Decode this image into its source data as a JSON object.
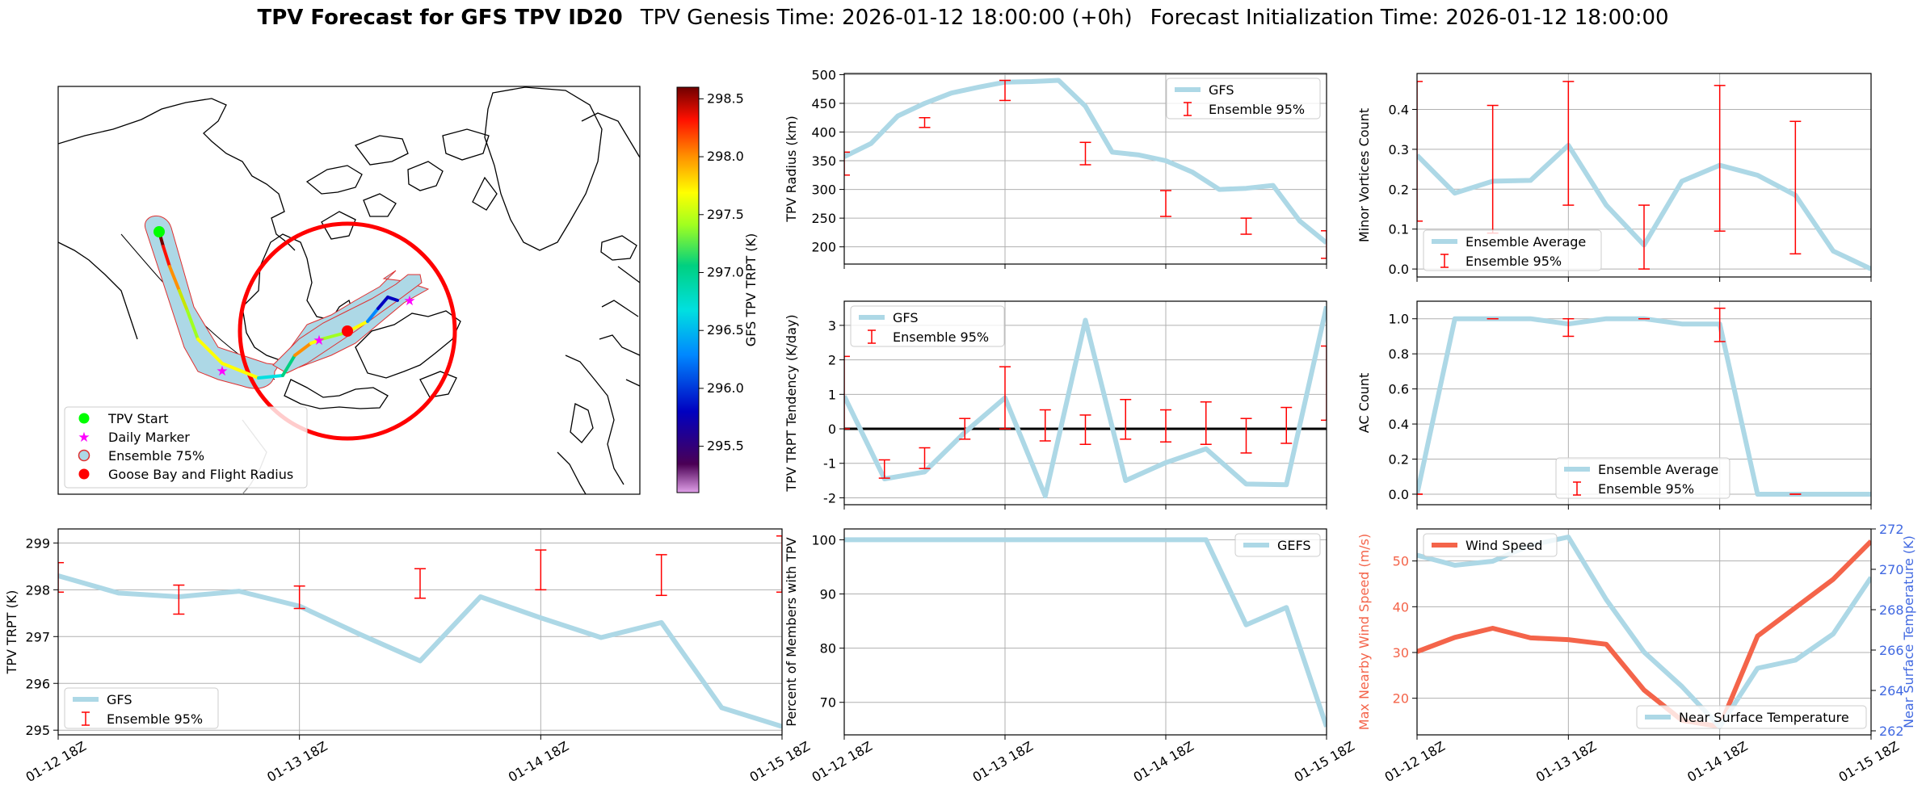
{
  "title": {
    "bold": "TPV Forecast for GFS TPV ID20",
    "genesis": "TPV Genesis Time: 2026-01-12 18:00:00 (+0h)",
    "init": "Forecast Initialization Time: 2026-01-12 18:00:00"
  },
  "colors": {
    "gfs_line": "#add8e6",
    "ensemble_err": "#ff0000",
    "wind_line": "#f4644a",
    "temp_axis": "#4169e1",
    "wind_axis": "#f4644a"
  },
  "map": {
    "colorbar_label": "GFS TPV TRPT (K)",
    "colorbar_ticks": [
      "298.5",
      "298.0",
      "297.5",
      "297.0",
      "296.5",
      "296.0",
      "295.5"
    ],
    "colorbar_range": [
      295.1,
      298.6
    ],
    "legend": [
      "TPV Start",
      "Daily Marker",
      "Ensemble 75%",
      "Goose Bay and Flight Radius"
    ],
    "legend_icons": [
      "green-circle-icon",
      "magenta-star-icon",
      "hollow-red-circle-icon",
      "red-circle-icon"
    ]
  },
  "chart_data": [
    {
      "id": "trpt",
      "type": "line",
      "title": "",
      "xlabel": "",
      "ylabel": "TPV TRPT (K)",
      "xticks": [
        "01-12 18Z",
        "01-13 18Z",
        "01-14 18Z",
        "01-15 18Z"
      ],
      "xlim": [
        0,
        72
      ],
      "ylim": [
        294.9,
        299.3
      ],
      "yticks": [
        295,
        296,
        297,
        298,
        299
      ],
      "legend": "bottom-left",
      "series": [
        {
          "name": "GFS",
          "x": [
            0,
            6,
            12,
            18,
            24,
            30,
            36,
            42,
            48,
            54,
            60,
            66,
            72
          ],
          "y": [
            298.3,
            297.93,
            297.85,
            297.97,
            297.65,
            297.05,
            296.48,
            297.85,
            297.4,
            296.98,
            297.3,
            295.48,
            295.08
          ]
        }
      ],
      "errorbars": {
        "name": "Ensemble 95%",
        "x": [
          0,
          12,
          24,
          36,
          48,
          60,
          72
        ],
        "low": [
          297.95,
          297.48,
          297.6,
          297.82,
          298.0,
          297.88,
          297.95
        ],
        "high": [
          298.58,
          298.1,
          298.08,
          298.45,
          298.85,
          298.75,
          299.15
        ]
      }
    },
    {
      "id": "radius",
      "type": "line",
      "title": "",
      "xlabel": "",
      "ylabel": "TPV Radius (km)",
      "xlim": [
        0,
        72
      ],
      "ylim": [
        170,
        502
      ],
      "yticks": [
        200,
        250,
        300,
        350,
        400,
        450,
        500
      ],
      "legend": "top-right",
      "series": [
        {
          "name": "GFS",
          "x": [
            0,
            4,
            8,
            12,
            16,
            20,
            24,
            28,
            32,
            36,
            40,
            44,
            48,
            52,
            56,
            60,
            64,
            68,
            72
          ],
          "y": [
            357,
            380,
            428,
            450,
            468,
            478,
            487,
            488,
            490,
            445,
            365,
            360,
            350,
            330,
            300,
            302,
            307,
            245,
            207
          ]
        }
      ],
      "errorbars": {
        "name": "Ensemble 95%",
        "x": [
          0,
          12,
          24,
          36,
          48,
          60,
          72
        ],
        "low": [
          325,
          408,
          455,
          343,
          253,
          222,
          180
        ],
        "high": [
          365,
          425,
          490,
          382,
          298,
          250,
          228
        ]
      }
    },
    {
      "id": "minor",
      "type": "line",
      "title": "",
      "xlabel": "",
      "ylabel": "Minor Vortices Count",
      "xlim": [
        0,
        72
      ],
      "ylim": [
        -0.02,
        0.49
      ],
      "yticks": [
        0.0,
        0.1,
        0.2,
        0.3,
        0.4
      ],
      "legend": "bottom-left",
      "series": [
        {
          "name": "Ensemble Average",
          "x": [
            0,
            6,
            12,
            18,
            24,
            30,
            36,
            42,
            48,
            54,
            60,
            66,
            72
          ],
          "y": [
            0.285,
            0.19,
            0.22,
            0.222,
            0.31,
            0.16,
            0.06,
            0.22,
            0.26,
            0.235,
            0.185,
            0.045,
            0.0
          ]
        }
      ],
      "errorbars": {
        "name": "Ensemble 95%",
        "x": [
          0,
          12,
          24,
          36,
          48,
          60
        ],
        "low": [
          0.12,
          0.09,
          0.16,
          0.0,
          0.095,
          0.038
        ],
        "high": [
          0.47,
          0.41,
          0.47,
          0.16,
          0.46,
          0.37
        ]
      }
    },
    {
      "id": "tendency",
      "type": "line",
      "title": "",
      "xlabel": "",
      "ylabel": "TPV TRPT Tendency (K/day)",
      "xlim": [
        0,
        72
      ],
      "ylim": [
        -2.2,
        3.7
      ],
      "yticks": [
        -2,
        -1,
        0,
        1,
        2,
        3
      ],
      "zero_line": true,
      "legend": "top-left",
      "series": [
        {
          "name": "GFS",
          "x": [
            0,
            6,
            12,
            18,
            24,
            30,
            36,
            42,
            48,
            54,
            60,
            66,
            72
          ],
          "y": [
            0.95,
            -1.45,
            -1.25,
            -0.1,
            0.9,
            -1.95,
            3.15,
            -1.5,
            -0.98,
            -0.58,
            -1.6,
            -1.62,
            3.55
          ]
        }
      ],
      "errorbars": {
        "name": "Ensemble 95%",
        "x": [
          0,
          6,
          12,
          18,
          24,
          30,
          36,
          42,
          48,
          54,
          60,
          66,
          72
        ],
        "low": [
          0.0,
          -1.43,
          -1.15,
          -0.3,
          0.0,
          -0.35,
          -0.45,
          -0.3,
          -0.38,
          -0.45,
          -0.7,
          -0.42,
          0.25
        ],
        "high": [
          2.1,
          -0.9,
          -0.55,
          0.3,
          1.8,
          0.55,
          0.4,
          0.85,
          0.55,
          0.78,
          0.3,
          0.62,
          2.4
        ]
      }
    },
    {
      "id": "ac",
      "type": "line",
      "title": "",
      "xlabel": "",
      "ylabel": "AC Count",
      "xlim": [
        0,
        72
      ],
      "ylim": [
        -0.06,
        1.1
      ],
      "yticks": [
        0.0,
        0.2,
        0.4,
        0.6,
        0.8,
        1.0
      ],
      "legend": "bottom-right",
      "series": [
        {
          "name": "Ensemble Average",
          "x": [
            0,
            6,
            12,
            18,
            24,
            30,
            36,
            42,
            48,
            54,
            60,
            66,
            72
          ],
          "y": [
            0.0,
            1.0,
            1.0,
            1.0,
            0.97,
            1.0,
            1.0,
            0.97,
            0.97,
            0.0,
            0.0,
            0.0,
            0.0
          ]
        }
      ],
      "errorbars": {
        "name": "Ensemble 95%",
        "x": [
          0,
          12,
          24,
          36,
          48,
          60
        ],
        "low": [
          0.0,
          1.0,
          0.9,
          1.0,
          0.87,
          0.0
        ],
        "high": [
          0.0,
          1.0,
          1.0,
          1.0,
          1.06,
          0.0
        ]
      }
    },
    {
      "id": "percent",
      "type": "line",
      "title": "",
      "xlabel": "",
      "ylabel": "Percent of Members with TPV",
      "xticks": [
        "01-12 18Z",
        "01-13 18Z",
        "01-14 18Z",
        "01-15 18Z"
      ],
      "xlim": [
        0,
        72
      ],
      "ylim": [
        64,
        102
      ],
      "yticks": [
        70,
        80,
        90,
        100
      ],
      "legend": "top-right",
      "series": [
        {
          "name": "GEFS",
          "x": [
            0,
            6,
            12,
            18,
            24,
            30,
            36,
            42,
            48,
            54,
            60,
            66,
            72
          ],
          "y": [
            100,
            100,
            100,
            100,
            100,
            100,
            100,
            100,
            100,
            100,
            84.3,
            87.5,
            65.5
          ]
        }
      ]
    },
    {
      "id": "wind",
      "type": "line",
      "title": "",
      "xlabel": "",
      "ylabel": "Max Nearby Wind Speed (m/s)",
      "ylabel_right": "Near Surface Temperature (K)",
      "xticks": [
        "01-12 18Z",
        "01-13 18Z",
        "01-14 18Z",
        "01-15 18Z"
      ],
      "xlim": [
        0,
        72
      ],
      "ylim": [
        12,
        57
      ],
      "yticks": [
        20,
        30,
        40,
        50
      ],
      "ylim_right": [
        261.8,
        272.0
      ],
      "yticks_right": [
        262,
        264,
        266,
        268,
        270,
        272
      ],
      "legend": "top-left and bottom-right",
      "series": [
        {
          "name": "Wind Speed",
          "axis": "left",
          "x": [
            0,
            6,
            12,
            18,
            24,
            30,
            36,
            42,
            48,
            54,
            60,
            66,
            72
          ],
          "y": [
            30.2,
            33.3,
            35.3,
            33.2,
            32.8,
            31.8,
            21.8,
            15.2,
            13.8,
            33.6,
            39.8,
            46.0,
            54.3
          ]
        },
        {
          "name": "Near Surface Temperature",
          "axis": "right",
          "x": [
            0,
            6,
            12,
            18,
            24,
            30,
            36,
            42,
            48,
            54,
            60,
            66,
            72
          ],
          "y": [
            270.7,
            270.2,
            270.4,
            271.2,
            271.6,
            268.5,
            265.9,
            264.2,
            262.2,
            265.1,
            265.5,
            266.8,
            269.6
          ]
        }
      ]
    }
  ]
}
